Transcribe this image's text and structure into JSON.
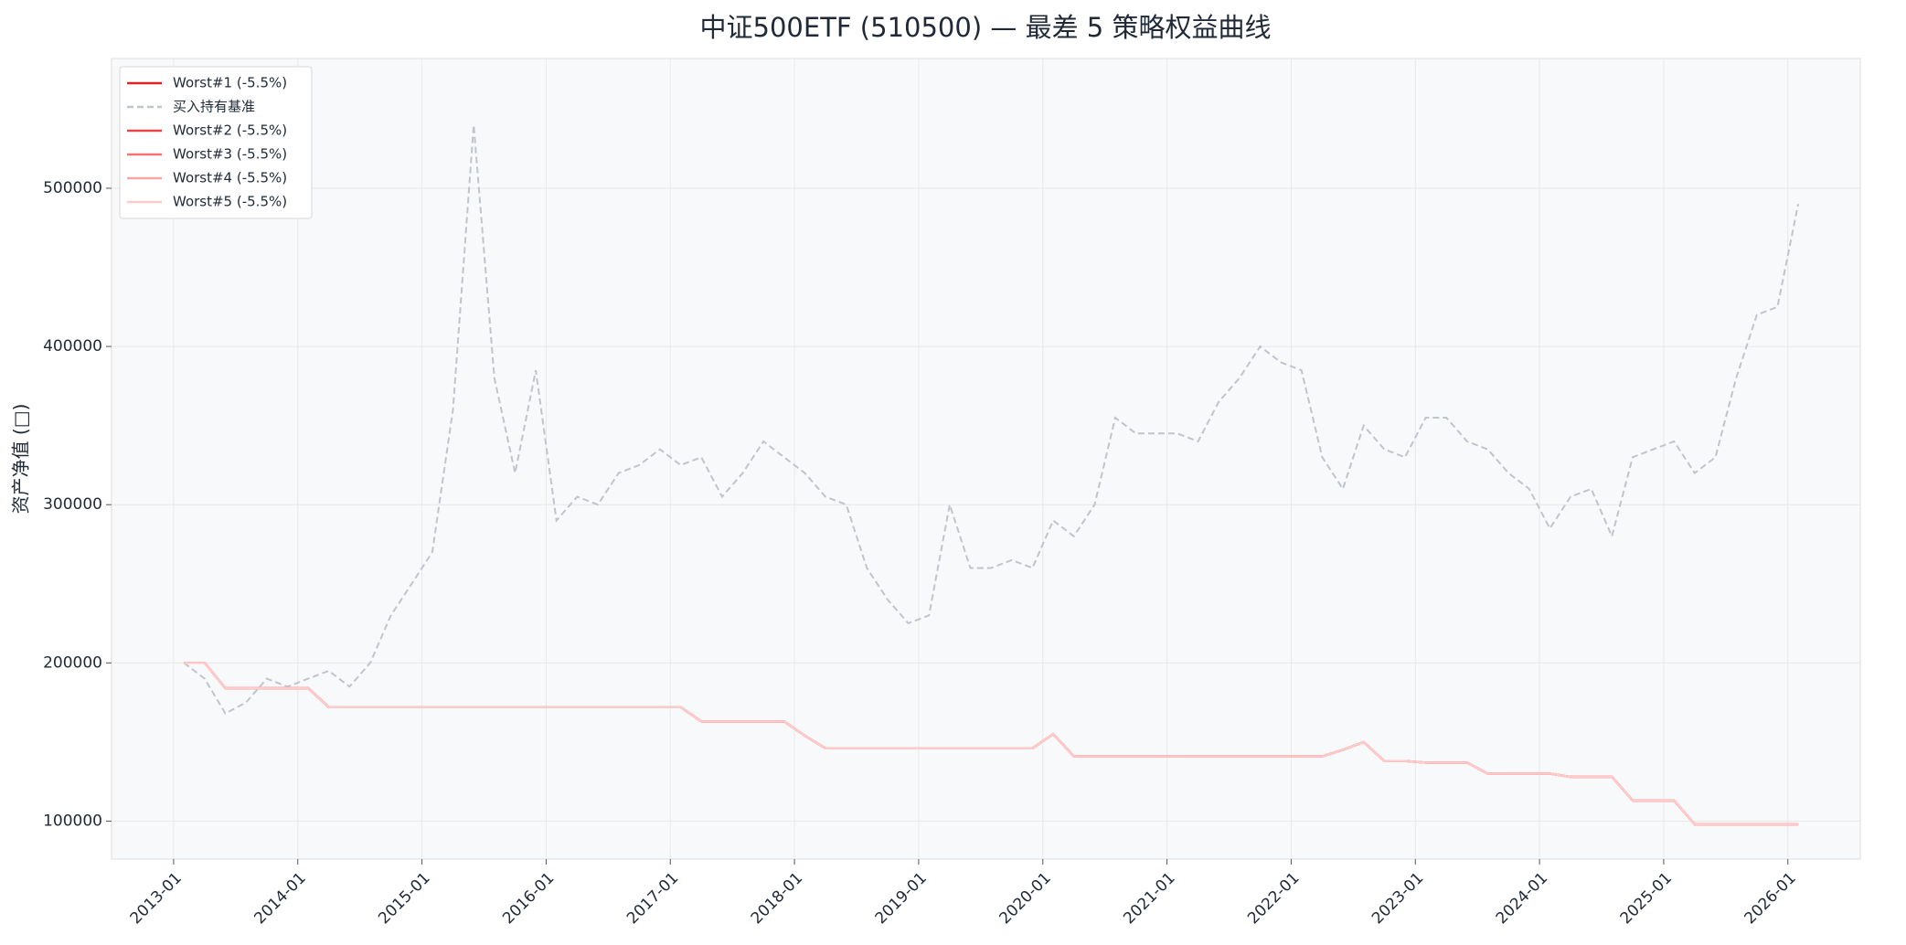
{
  "chart_data": {
    "type": "line",
    "title": "中证500ETF (510500) — 最差 5 策略权益曲线",
    "y_label": "资产净值 (□)",
    "x": [
      "2013-02",
      "2013-04",
      "2013-06",
      "2013-08",
      "2013-10",
      "2013-12",
      "2014-02",
      "2014-04",
      "2014-06",
      "2014-08",
      "2014-10",
      "2014-12",
      "2015-02",
      "2015-04",
      "2015-06",
      "2015-08",
      "2015-10",
      "2015-12",
      "2016-02",
      "2016-04",
      "2016-06",
      "2016-08",
      "2016-10",
      "2016-12",
      "2017-02",
      "2017-04",
      "2017-06",
      "2017-08",
      "2017-10",
      "2017-12",
      "2018-02",
      "2018-04",
      "2018-06",
      "2018-08",
      "2018-10",
      "2018-12",
      "2019-02",
      "2019-04",
      "2019-06",
      "2019-08",
      "2019-10",
      "2019-12",
      "2020-02",
      "2020-04",
      "2020-06",
      "2020-08",
      "2020-10",
      "2020-12",
      "2021-02",
      "2021-04",
      "2021-06",
      "2021-08",
      "2021-10",
      "2021-12",
      "2022-02",
      "2022-04",
      "2022-06",
      "2022-08",
      "2022-10",
      "2022-12",
      "2023-02",
      "2023-04",
      "2023-06",
      "2023-08",
      "2023-10",
      "2023-12",
      "2024-02",
      "2024-04",
      "2024-06",
      "2024-08",
      "2024-10",
      "2024-12",
      "2025-02",
      "2025-04",
      "2025-06",
      "2025-08",
      "2025-10",
      "2025-12",
      "2026-02"
    ],
    "series": [
      {
        "name": "Worst#1 (-5.5%)",
        "color": "#dc2626",
        "style": "solid",
        "values": [
          200000,
          200000,
          184000,
          184000,
          184000,
          184000,
          184000,
          172000,
          172000,
          172000,
          172000,
          172000,
          172000,
          172000,
          172000,
          172000,
          172000,
          172000,
          172000,
          172000,
          172000,
          172000,
          172000,
          172000,
          172000,
          163000,
          163000,
          163000,
          163000,
          163000,
          154000,
          146000,
          146000,
          146000,
          146000,
          146000,
          146000,
          146000,
          146000,
          146000,
          146000,
          146000,
          155000,
          141000,
          141000,
          141000,
          141000,
          141000,
          141000,
          141000,
          141000,
          141000,
          141000,
          141000,
          141000,
          141000,
          145000,
          150000,
          138000,
          138000,
          137000,
          137000,
          137000,
          130000,
          130000,
          130000,
          130000,
          128000,
          128000,
          128000,
          113000,
          113000,
          113000,
          98000,
          98000,
          98000,
          98000,
          98000,
          98000
        ]
      },
      {
        "name": "买入持有基准",
        "color": "#c0c4cc",
        "style": "dashed",
        "values": [
          200000,
          190000,
          168000,
          175000,
          190000,
          185000,
          190000,
          195000,
          185000,
          200000,
          230000,
          250000,
          270000,
          360000,
          540000,
          380000,
          320000,
          385000,
          290000,
          305000,
          300000,
          320000,
          325000,
          335000,
          325000,
          330000,
          305000,
          320000,
          340000,
          330000,
          320000,
          305000,
          300000,
          260000,
          240000,
          225000,
          230000,
          300000,
          260000,
          260000,
          265000,
          260000,
          290000,
          280000,
          300000,
          355000,
          345000,
          345000,
          345000,
          340000,
          365000,
          380000,
          400000,
          390000,
          385000,
          330000,
          310000,
          350000,
          335000,
          330000,
          355000,
          355000,
          340000,
          335000,
          320000,
          310000,
          285000,
          305000,
          310000,
          280000,
          330000,
          335000,
          340000,
          320000,
          330000,
          380000,
          420000,
          425000,
          490000
        ]
      },
      {
        "name": "Worst#2 (-5.5%)",
        "color": "#ef4444",
        "style": "solid",
        "values": [
          200000,
          200000,
          184000,
          184000,
          184000,
          184000,
          184000,
          172000,
          172000,
          172000,
          172000,
          172000,
          172000,
          172000,
          172000,
          172000,
          172000,
          172000,
          172000,
          172000,
          172000,
          172000,
          172000,
          172000,
          172000,
          163000,
          163000,
          163000,
          163000,
          163000,
          154000,
          146000,
          146000,
          146000,
          146000,
          146000,
          146000,
          146000,
          146000,
          146000,
          146000,
          146000,
          155000,
          141000,
          141000,
          141000,
          141000,
          141000,
          141000,
          141000,
          141000,
          141000,
          141000,
          141000,
          141000,
          141000,
          145000,
          150000,
          138000,
          138000,
          137000,
          137000,
          137000,
          130000,
          130000,
          130000,
          130000,
          128000,
          128000,
          128000,
          113000,
          113000,
          113000,
          98000,
          98000,
          98000,
          98000,
          98000,
          98000
        ]
      },
      {
        "name": "Worst#3 (-5.5%)",
        "color": "#f87171",
        "style": "solid",
        "values": [
          200000,
          200000,
          184000,
          184000,
          184000,
          184000,
          184000,
          172000,
          172000,
          172000,
          172000,
          172000,
          172000,
          172000,
          172000,
          172000,
          172000,
          172000,
          172000,
          172000,
          172000,
          172000,
          172000,
          172000,
          172000,
          163000,
          163000,
          163000,
          163000,
          163000,
          154000,
          146000,
          146000,
          146000,
          146000,
          146000,
          146000,
          146000,
          146000,
          146000,
          146000,
          146000,
          155000,
          141000,
          141000,
          141000,
          141000,
          141000,
          141000,
          141000,
          141000,
          141000,
          141000,
          141000,
          141000,
          141000,
          145000,
          150000,
          138000,
          138000,
          137000,
          137000,
          137000,
          130000,
          130000,
          130000,
          130000,
          128000,
          128000,
          128000,
          113000,
          113000,
          113000,
          98000,
          98000,
          98000,
          98000,
          98000,
          98000
        ]
      },
      {
        "name": "Worst#4 (-5.5%)",
        "color": "#fca5a5",
        "style": "solid",
        "values": [
          200000,
          200000,
          184000,
          184000,
          184000,
          184000,
          184000,
          172000,
          172000,
          172000,
          172000,
          172000,
          172000,
          172000,
          172000,
          172000,
          172000,
          172000,
          172000,
          172000,
          172000,
          172000,
          172000,
          172000,
          172000,
          163000,
          163000,
          163000,
          163000,
          163000,
          154000,
          146000,
          146000,
          146000,
          146000,
          146000,
          146000,
          146000,
          146000,
          146000,
          146000,
          146000,
          155000,
          141000,
          141000,
          141000,
          141000,
          141000,
          141000,
          141000,
          141000,
          141000,
          141000,
          141000,
          141000,
          141000,
          145000,
          150000,
          138000,
          138000,
          137000,
          137000,
          137000,
          130000,
          130000,
          130000,
          130000,
          128000,
          128000,
          128000,
          113000,
          113000,
          113000,
          98000,
          98000,
          98000,
          98000,
          98000,
          98000
        ]
      },
      {
        "name": "Worst#5 (-5.5%)",
        "color": "#fecaca",
        "style": "solid",
        "values": [
          200000,
          200000,
          184000,
          184000,
          184000,
          184000,
          184000,
          172000,
          172000,
          172000,
          172000,
          172000,
          172000,
          172000,
          172000,
          172000,
          172000,
          172000,
          172000,
          172000,
          172000,
          172000,
          172000,
          172000,
          172000,
          163000,
          163000,
          163000,
          163000,
          163000,
          154000,
          146000,
          146000,
          146000,
          146000,
          146000,
          146000,
          146000,
          146000,
          146000,
          146000,
          146000,
          155000,
          141000,
          141000,
          141000,
          141000,
          141000,
          141000,
          141000,
          141000,
          141000,
          141000,
          141000,
          141000,
          141000,
          145000,
          150000,
          138000,
          138000,
          137000,
          137000,
          137000,
          130000,
          130000,
          130000,
          130000,
          128000,
          128000,
          128000,
          113000,
          113000,
          113000,
          98000,
          98000,
          98000,
          98000,
          98000,
          98000
        ]
      }
    ],
    "xlim": [
      "2012-07",
      "2026-08"
    ],
    "xticks": [
      "2013-01",
      "2014-01",
      "2015-01",
      "2016-01",
      "2017-01",
      "2018-01",
      "2019-01",
      "2020-01",
      "2021-01",
      "2022-01",
      "2023-01",
      "2024-01",
      "2025-01",
      "2026-01"
    ],
    "ylim": [
      76000,
      582000
    ],
    "yticks": [
      100000,
      200000,
      300000,
      400000,
      500000
    ],
    "grid": true,
    "legend": "upper-left"
  }
}
